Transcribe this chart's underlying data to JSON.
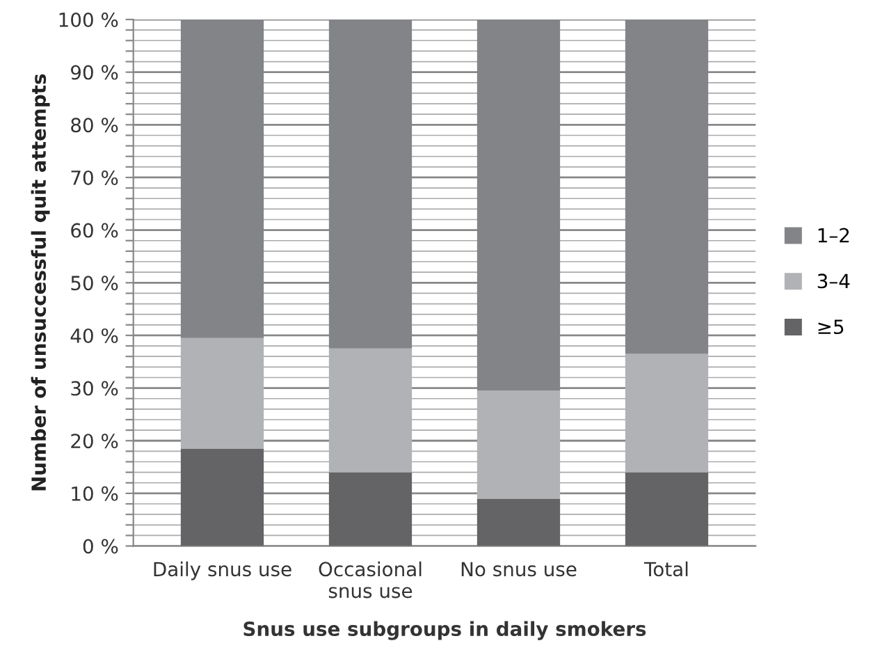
{
  "chart_data": {
    "type": "bar",
    "stacked": true,
    "xlabel": "Snus use subgroups in daily smokers",
    "ylabel": "Number of unsuccessful quit attempts",
    "categories": [
      "Daily snus use",
      "Occasional\nsnus use",
      "No snus use",
      "Total"
    ],
    "series": [
      {
        "name": "≥5",
        "color": "#646466",
        "values": [
          18.5,
          14,
          9,
          14
        ]
      },
      {
        "name": "3–4",
        "color": "#b1b2b5",
        "values": [
          21,
          23.5,
          20.5,
          22.5
        ]
      },
      {
        "name": "1–2",
        "color": "#838488",
        "values": [
          60.5,
          62.5,
          70.5,
          63.5
        ]
      }
    ],
    "ylim": [
      0,
      100
    ],
    "yticks": [
      {
        "value": 0,
        "label": "0 %"
      },
      {
        "value": 2,
        "label": null
      },
      {
        "value": 4,
        "label": null
      },
      {
        "value": 6,
        "label": null
      },
      {
        "value": 8,
        "label": null
      },
      {
        "value": 10,
        "label": "10 %"
      },
      {
        "value": 12,
        "label": null
      },
      {
        "value": 14,
        "label": null
      },
      {
        "value": 16,
        "label": null
      },
      {
        "value": 18,
        "label": null
      },
      {
        "value": 20,
        "label": "20 %"
      },
      {
        "value": 22,
        "label": null
      },
      {
        "value": 24,
        "label": null
      },
      {
        "value": 26,
        "label": null
      },
      {
        "value": 28,
        "label": null
      },
      {
        "value": 30,
        "label": "30 %"
      },
      {
        "value": 32,
        "label": null
      },
      {
        "value": 34,
        "label": null
      },
      {
        "value": 36,
        "label": null
      },
      {
        "value": 38,
        "label": null
      },
      {
        "value": 40,
        "label": "40 %"
      },
      {
        "value": 42,
        "label": null
      },
      {
        "value": 44,
        "label": null
      },
      {
        "value": 46,
        "label": null
      },
      {
        "value": 48,
        "label": null
      },
      {
        "value": 50,
        "label": "50 %"
      },
      {
        "value": 52,
        "label": null
      },
      {
        "value": 54,
        "label": null
      },
      {
        "value": 56,
        "label": null
      },
      {
        "value": 58,
        "label": null
      },
      {
        "value": 60,
        "label": "60 %"
      },
      {
        "value": 62,
        "label": null
      },
      {
        "value": 64,
        "label": null
      },
      {
        "value": 66,
        "label": null
      },
      {
        "value": 68,
        "label": null
      },
      {
        "value": 70,
        "label": "70 %"
      },
      {
        "value": 72,
        "label": null
      },
      {
        "value": 74,
        "label": null
      },
      {
        "value": 76,
        "label": null
      },
      {
        "value": 78,
        "label": null
      },
      {
        "value": 80,
        "label": "80 %"
      },
      {
        "value": 82,
        "label": null
      },
      {
        "value": 84,
        "label": null
      },
      {
        "value": 86,
        "label": null
      },
      {
        "value": 88,
        "label": null
      },
      {
        "value": 90,
        "label": "90 %"
      },
      {
        "value": 92,
        "label": null
      },
      {
        "value": 94,
        "label": null
      },
      {
        "value": 96,
        "label": null
      },
      {
        "value": 98,
        "label": null
      },
      {
        "value": 100,
        "label": "100 %"
      }
    ],
    "grid": "y",
    "legend": "right"
  }
}
